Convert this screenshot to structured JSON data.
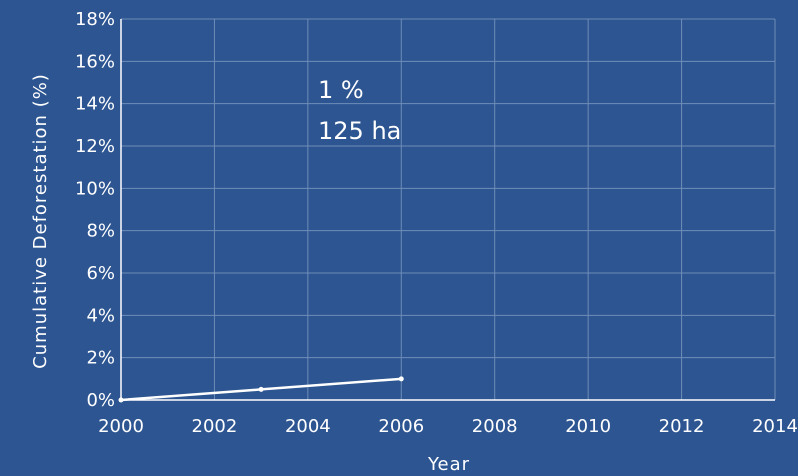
{
  "chart_data": {
    "type": "line",
    "title": "",
    "xlabel": "Year",
    "ylabel": "Cumulative Deforestation (%)",
    "xlim": [
      2000,
      2014
    ],
    "ylim": [
      0,
      18
    ],
    "x_ticks": [
      "2000",
      "2002",
      "2004",
      "2006",
      "2008",
      "2010",
      "2012",
      "2014"
    ],
    "y_ticks": [
      "0%",
      "2%",
      "4%",
      "6%",
      "8%",
      "10%",
      "12%",
      "14%",
      "16%",
      "18%"
    ],
    "grid": true,
    "legend": "none",
    "series": [
      {
        "x": [
          2000,
          2003,
          2006
        ],
        "y": [
          0,
          0.5,
          1.0
        ]
      }
    ],
    "annotations": [
      "1 %",
      "125 ha"
    ],
    "colors": {
      "background": "#2d5591",
      "line": "#ffffff",
      "grid": "#6f8db8"
    }
  }
}
